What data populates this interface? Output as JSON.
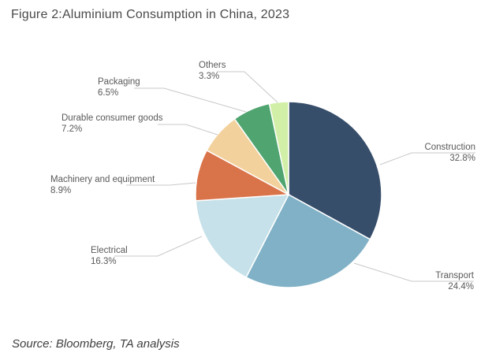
{
  "figure": {
    "title": "Figure 2:Aluminium Consumption in China, 2023",
    "source": "Source: Bloomberg, TA analysis"
  },
  "chart_data": {
    "type": "pie",
    "title": "Figure 2:Aluminium Consumption in China, 2023",
    "slices": [
      {
        "label": "Construction",
        "value": 32.8,
        "display": "32.8%",
        "color": "#374e6b"
      },
      {
        "label": "Transport",
        "value": 24.4,
        "display": "24.4%",
        "color": "#80b1c6"
      },
      {
        "label": "Electrical",
        "value": 16.3,
        "display": "16.3%",
        "color": "#c6e1e9"
      },
      {
        "label": "Machinery and equipment",
        "value": 8.9,
        "display": "8.9%",
        "color": "#d9734a"
      },
      {
        "label": "Durable consumer goods",
        "value": 7.2,
        "display": "7.2%",
        "color": "#f2d19c"
      },
      {
        "label": "Packaging",
        "value": 6.5,
        "display": "6.5%",
        "color": "#4fa46f"
      },
      {
        "label": "Others",
        "value": 3.3,
        "display": "3.3%",
        "color": "#d2efa8"
      }
    ],
    "start_angle_deg": 0,
    "direction": "clockwise",
    "legend": "none",
    "labels": "outside-with-leader-lines"
  }
}
